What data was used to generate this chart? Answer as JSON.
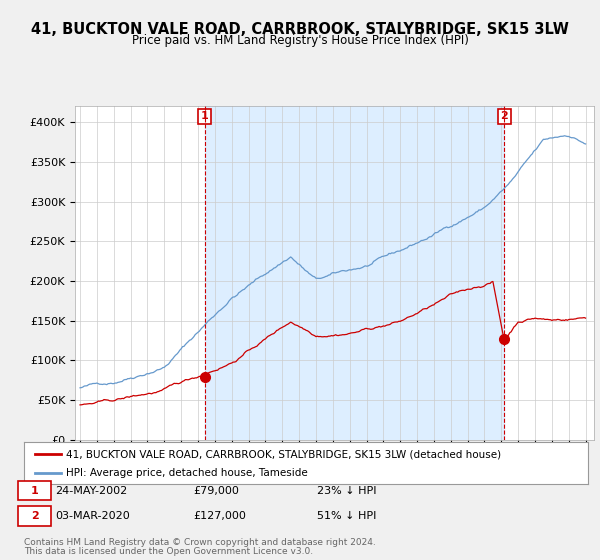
{
  "title": "41, BUCKTON VALE ROAD, CARRBROOK, STALYBRIDGE, SK15 3LW",
  "subtitle": "Price paid vs. HM Land Registry's House Price Index (HPI)",
  "red_label": "41, BUCKTON VALE ROAD, CARRBROOK, STALYBRIDGE, SK15 3LW (detached house)",
  "blue_label": "HPI: Average price, detached house, Tameside",
  "annotation1_date": "24-MAY-2002",
  "annotation1_price": "£79,000",
  "annotation1_pct": "23% ↓ HPI",
  "annotation2_date": "03-MAR-2020",
  "annotation2_price": "£127,000",
  "annotation2_pct": "51% ↓ HPI",
  "footer1": "Contains HM Land Registry data © Crown copyright and database right 2024.",
  "footer2": "This data is licensed under the Open Government Licence v3.0.",
  "ylim": [
    0,
    420000
  ],
  "yticks": [
    0,
    50000,
    100000,
    150000,
    200000,
    250000,
    300000,
    350000,
    400000
  ],
  "ytick_labels": [
    "£0",
    "£50K",
    "£100K",
    "£150K",
    "£200K",
    "£250K",
    "£300K",
    "£350K",
    "£400K"
  ],
  "background_color": "#f0f0f0",
  "plot_bg_color": "#ffffff",
  "highlight_bg_color": "#ddeeff",
  "red_color": "#cc0000",
  "blue_color": "#6699cc",
  "grid_color": "#cccccc",
  "ann1_x": 2002.4,
  "ann1_y": 79000,
  "ann2_x": 2020.17,
  "ann2_y": 127000,
  "xmin": 1995,
  "xmax": 2025
}
